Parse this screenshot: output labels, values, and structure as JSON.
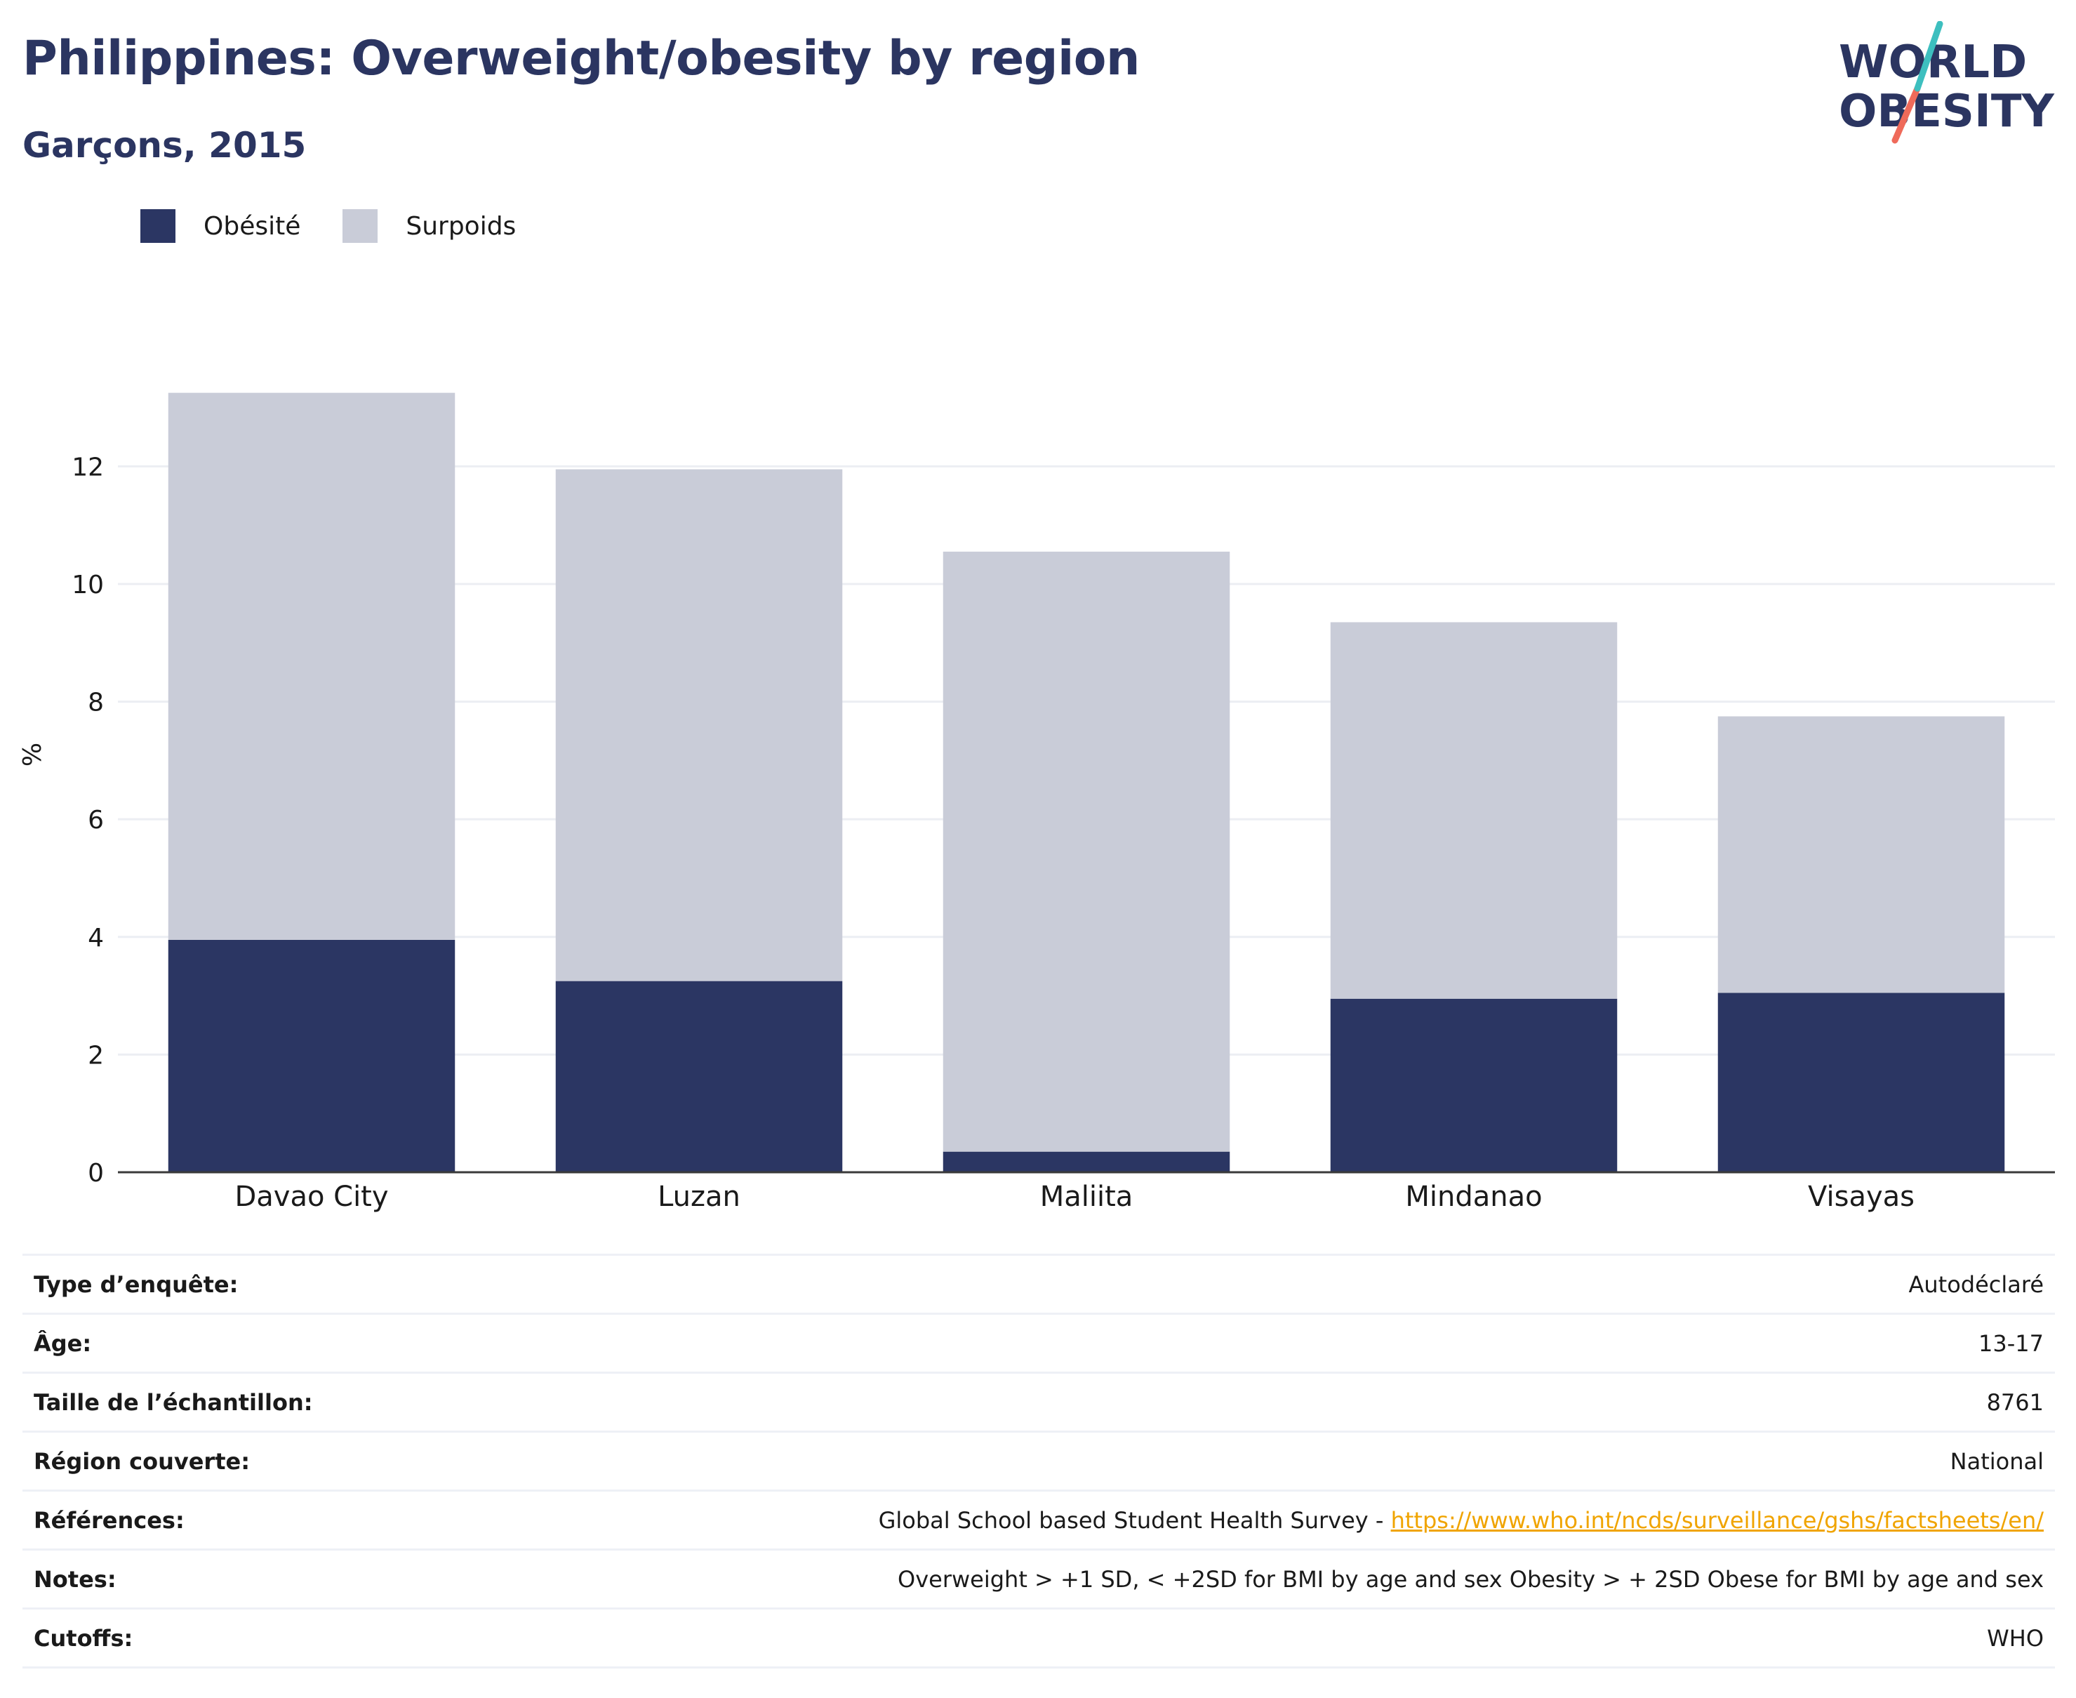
{
  "header": {
    "title": "Philippines: Overweight/obesity by region",
    "subtitle": "Garçons, 2015",
    "logo_line1": "WORLD",
    "logo_line2": "OBESITY"
  },
  "legend": [
    {
      "label": "Obésité",
      "color": "#2b3663"
    },
    {
      "label": "Surpoids",
      "color": "#c9ccd8"
    }
  ],
  "chart_data": {
    "type": "bar",
    "stacked": true,
    "categories": [
      "Davao City",
      "Luzan",
      "Maliita",
      "Mindanao",
      "Visayas"
    ],
    "series": [
      {
        "name": "Obésité",
        "values": [
          3.95,
          3.25,
          0.35,
          2.95,
          3.05
        ],
        "color": "#2b3663"
      },
      {
        "name": "Surpoids",
        "values": [
          9.3,
          8.7,
          10.2,
          6.4,
          4.7
        ],
        "color": "#c9ccd8"
      }
    ],
    "ylabel": "%",
    "yticks": [
      0,
      2,
      4,
      6,
      8,
      10,
      12
    ],
    "ylim": [
      0,
      14.2
    ],
    "grid": true,
    "legend_position": "top-left"
  },
  "info": [
    {
      "key": "Type d’enquête:",
      "value": "Autodéclaré"
    },
    {
      "key": "Âge:",
      "value": "13-17"
    },
    {
      "key": "Taille de l’échantillon:",
      "value": "8761"
    },
    {
      "key": "Région couverte:",
      "value": "National"
    },
    {
      "key": "Références:",
      "value": "Global School based Student Health Survey - ",
      "link": "https://www.who.int/ncds/surveillance/gshs/factsheets/en/"
    },
    {
      "key": "Notes:",
      "value": "Overweight > +1 SD, < +2SD for BMI by age and sex Obesity > + 2SD Obese for BMI by age and sex"
    },
    {
      "key": "Cutoffs:",
      "value": "WHO"
    }
  ]
}
